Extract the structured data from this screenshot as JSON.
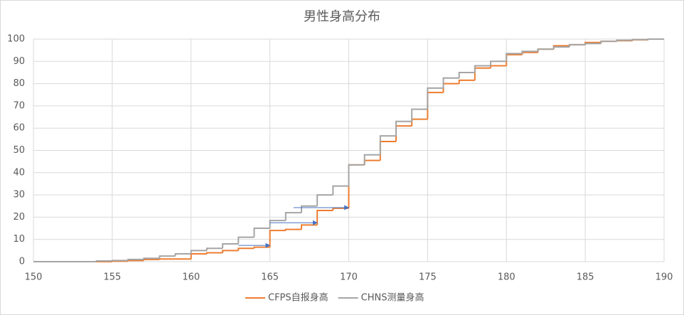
{
  "chart_data": {
    "type": "step",
    "title": "男性身高分布",
    "x": [
      150,
      151,
      152,
      153,
      154,
      155,
      156,
      157,
      158,
      159,
      160,
      161,
      162,
      163,
      164,
      165,
      166,
      167,
      168,
      169,
      170,
      171,
      172,
      173,
      174,
      175,
      176,
      177,
      178,
      179,
      180,
      181,
      182,
      183,
      184,
      185,
      186,
      187,
      188,
      189,
      190
    ],
    "series": [
      {
        "name": "CFPS自报身高",
        "color": "#ed7d31",
        "values": [
          0,
          0,
          0,
          0,
          0,
          0.2,
          0.5,
          1,
          1.2,
          1.2,
          3.5,
          4,
          5,
          6,
          6.5,
          14,
          14.5,
          16.5,
          23,
          24,
          43.5,
          45.5,
          54,
          61,
          64,
          76,
          80,
          81.5,
          87,
          88,
          93,
          94,
          95.5,
          97,
          97.5,
          98.5,
          99,
          99.3,
          99.7,
          100,
          100
        ]
      },
      {
        "name": "CHNS测量身高",
        "color": "#a5a5a5",
        "values": [
          0,
          0,
          0,
          0,
          0.3,
          0.5,
          1,
          1.5,
          2.5,
          3.5,
          5,
          6,
          8,
          11,
          15,
          18.5,
          22,
          25,
          30,
          34,
          43.5,
          48,
          56.5,
          63,
          68.5,
          78,
          82.5,
          85,
          88,
          90,
          93.5,
          94.5,
          95.5,
          96.5,
          97.5,
          98,
          99,
          99.5,
          99.8,
          100,
          100
        ]
      }
    ],
    "annotations": [
      {
        "x1": 163,
        "x2": 165,
        "y": 7.3,
        "color": "#4472c4"
      },
      {
        "x1": 165,
        "x2": 168,
        "y": 17.5,
        "color": "#4472c4"
      },
      {
        "x1": 166.5,
        "x2": 170,
        "y": 24.3,
        "color": "#4472c4"
      }
    ],
    "xlim": [
      150,
      190
    ],
    "xticks": [
      150,
      155,
      160,
      165,
      170,
      175,
      180,
      185,
      190
    ],
    "ylim": [
      0,
      100
    ],
    "yticks": [
      0,
      10,
      20,
      30,
      40,
      50,
      60,
      70,
      80,
      90,
      100
    ],
    "grid": true,
    "legend": "bottom"
  }
}
